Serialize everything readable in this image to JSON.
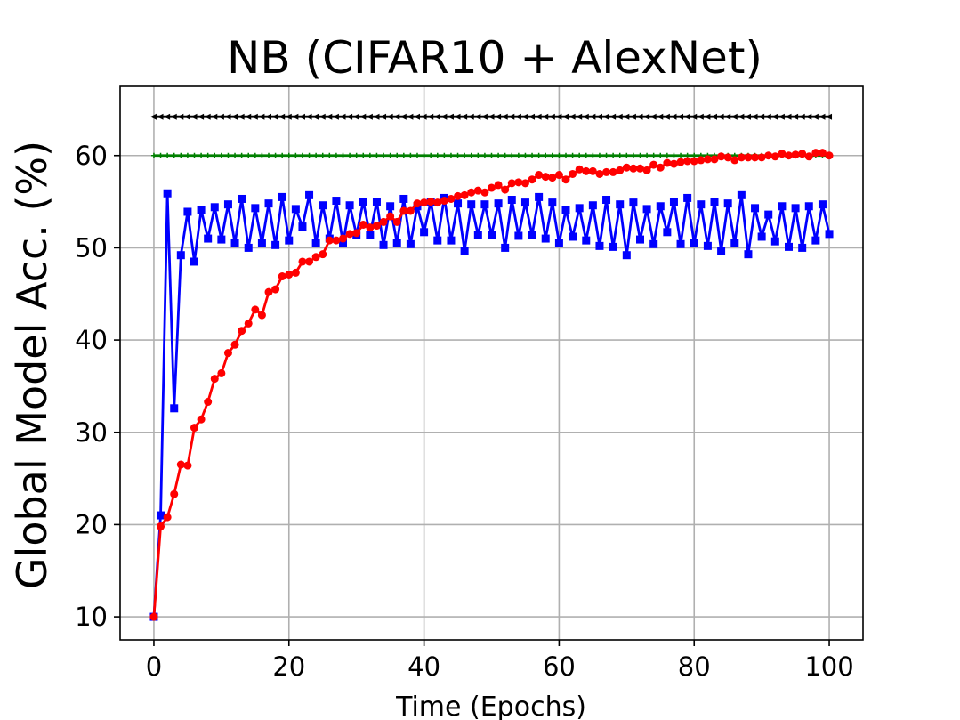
{
  "chart_data": {
    "type": "line",
    "title": "NB (CIFAR10 + AlexNet)",
    "xlabel": "Time (Epochs)",
    "ylabel": "Global Model Acc. (%)",
    "xlim": [
      -5,
      105
    ],
    "ylim": [
      7.5,
      67.5
    ],
    "xticks": [
      0,
      20,
      40,
      60,
      80,
      100
    ],
    "yticks": [
      10,
      20,
      30,
      40,
      50,
      60
    ],
    "grid": true,
    "legend": "none",
    "series": [
      {
        "color": "#000000",
        "marker": "triangle-left",
        "line_style": "solid",
        "constant_value": 64.2,
        "x_range": [
          0,
          100
        ]
      },
      {
        "color": "#008000",
        "marker": "plus",
        "line_style": "solid",
        "constant_value": 60.0,
        "x_range": [
          0,
          100
        ]
      },
      {
        "color": "#0000ff",
        "marker": "square",
        "line_style": "solid",
        "x": [
          0,
          1,
          2,
          3,
          4,
          5,
          6,
          7,
          8,
          9,
          10,
          11,
          12,
          13,
          14,
          15,
          16,
          17,
          18,
          19,
          20,
          21,
          22,
          23,
          24,
          25,
          26,
          27,
          28,
          29,
          30,
          31,
          32,
          33,
          34,
          35,
          36,
          37,
          38,
          39,
          40,
          41,
          42,
          43,
          44,
          45,
          46,
          47,
          48,
          49,
          50,
          51,
          52,
          53,
          54,
          55,
          56,
          57,
          58,
          59,
          60,
          61,
          62,
          63,
          64,
          65,
          66,
          67,
          68,
          69,
          70,
          71,
          72,
          73,
          74,
          75,
          76,
          77,
          78,
          79,
          80,
          81,
          82,
          83,
          84,
          85,
          86,
          87,
          88,
          89,
          90,
          91,
          92,
          93,
          94,
          95,
          96,
          97,
          98,
          99,
          100
        ],
        "values": [
          10.0,
          21.0,
          55.9,
          32.6,
          49.2,
          53.9,
          48.5,
          54.1,
          51.0,
          54.4,
          50.9,
          54.7,
          50.5,
          55.3,
          50.0,
          54.3,
          50.5,
          54.8,
          50.3,
          55.5,
          50.8,
          54.2,
          52.3,
          55.7,
          50.5,
          54.6,
          51.0,
          55.1,
          50.5,
          54.6,
          51.4,
          55.0,
          51.4,
          55.0,
          50.3,
          54.5,
          50.5,
          55.3,
          50.4,
          54.5,
          51.7,
          55.0,
          50.8,
          55.4,
          50.8,
          54.8,
          49.7,
          54.7,
          51.4,
          54.7,
          51.4,
          54.8,
          50.0,
          55.2,
          51.3,
          54.9,
          51.4,
          55.5,
          51.0,
          54.9,
          50.5,
          54.1,
          51.2,
          54.3,
          50.8,
          54.6,
          50.2,
          55.2,
          50.1,
          54.7,
          49.2,
          54.9,
          50.9,
          54.2,
          50.4,
          54.5,
          51.7,
          55.0,
          50.4,
          55.4,
          50.5,
          54.7,
          50.2,
          55.0,
          49.7,
          54.8,
          50.5,
          55.7,
          49.3,
          54.3,
          51.2,
          53.6,
          50.7,
          54.5,
          50.1,
          54.3,
          50.0,
          54.5,
          50.8,
          54.7,
          51.5
        ]
      },
      {
        "color": "#ff0000",
        "marker": "circle",
        "line_style": "solid",
        "x": [
          0,
          1,
          2,
          3,
          4,
          5,
          6,
          7,
          8,
          9,
          10,
          11,
          12,
          13,
          14,
          15,
          16,
          17,
          18,
          19,
          20,
          21,
          22,
          23,
          24,
          25,
          26,
          27,
          28,
          29,
          30,
          31,
          32,
          33,
          34,
          35,
          36,
          37,
          38,
          39,
          40,
          41,
          42,
          43,
          44,
          45,
          46,
          47,
          48,
          49,
          50,
          51,
          52,
          53,
          54,
          55,
          56,
          57,
          58,
          59,
          60,
          61,
          62,
          63,
          64,
          65,
          66,
          67,
          68,
          69,
          70,
          71,
          72,
          73,
          74,
          75,
          76,
          77,
          78,
          79,
          80,
          81,
          82,
          83,
          84,
          85,
          86,
          87,
          88,
          89,
          90,
          91,
          92,
          93,
          94,
          95,
          96,
          97,
          98,
          99,
          100
        ],
        "values": [
          10.0,
          19.8,
          20.8,
          23.3,
          26.5,
          26.4,
          30.5,
          31.4,
          33.3,
          35.8,
          36.4,
          38.6,
          39.5,
          41.0,
          41.8,
          43.3,
          42.7,
          45.2,
          45.5,
          46.9,
          47.1,
          47.3,
          48.5,
          48.5,
          49.0,
          49.3,
          50.8,
          50.8,
          51.0,
          51.5,
          51.6,
          52.5,
          52.2,
          52.4,
          52.8,
          53.4,
          52.8,
          54.0,
          54.0,
          54.8,
          54.9,
          55.0,
          54.9,
          55.1,
          55.3,
          55.6,
          55.7,
          56.0,
          56.2,
          56.0,
          56.5,
          56.8,
          56.3,
          57.0,
          57.1,
          57.0,
          57.4,
          57.9,
          57.7,
          57.6,
          57.9,
          57.4,
          58.0,
          58.5,
          58.3,
          58.3,
          58.0,
          58.2,
          58.2,
          58.4,
          58.7,
          58.6,
          58.6,
          58.4,
          59.0,
          58.7,
          59.2,
          59.1,
          59.3,
          59.4,
          59.4,
          59.5,
          59.6,
          59.6,
          59.9,
          59.8,
          59.5,
          59.8,
          59.8,
          59.8,
          59.8,
          60.0,
          59.9,
          60.2,
          60.0,
          60.1,
          60.2,
          59.9,
          60.3,
          60.3,
          60.0
        ]
      }
    ]
  }
}
